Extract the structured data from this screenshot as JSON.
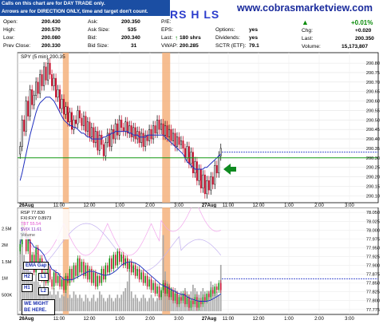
{
  "header": {
    "note_line1": "Calls on this chart are for DAY TRADE only.",
    "note_line2": "Arrows are for DIRECTION ONLY, time and target don't count.",
    "ticker_label": "RS H LS",
    "website": "www.cobrasmarketview.com"
  },
  "quote": {
    "open_label": "Open:",
    "open": "200.430",
    "high_label": "High:",
    "high": "200.570",
    "low_label": "Low:",
    "low": "200.080",
    "prev_label": "Prev Close:",
    "prev": "200.330",
    "ask_label": "Ask:",
    "ask": "200.350",
    "asksize_label": "Ask Size:",
    "asksize": "535",
    "bid_label": "Bid:",
    "bid": "200.340",
    "bidsize_label": "Bid Size:",
    "bidsize": "31",
    "pe_label": "P/E:",
    "pe": "",
    "eps_label": "EPS:",
    "eps": "",
    "last_label": "Last:",
    "last_size": "180 shrs",
    "vwap_label": "VWAP:",
    "vwap": "200.285",
    "options_label": "Options:",
    "options": "yes",
    "dividends_label": "Dividends:",
    "dividends": "yes",
    "sctr_label": "SCTR (ETF):",
    "sctr": "79.1",
    "chg_pct": "+0.01%",
    "chg_label": "Chg:",
    "chg": "+0.020",
    "last2_label": "Last:",
    "last": "200.350",
    "volume_label": "Volume:",
    "volume": "15,173,807"
  },
  "main_panel": {
    "legend": "SPY (5 min) 200.35"
  },
  "volume_panel": {
    "legend_rsp": "RSP 77.830",
    "legend_fxi": "FXI:FXY 0.8973",
    "legend_tbt": "TBT 55.54",
    "legend_vix": "$VIX 11.61",
    "legend_vol": "Volume"
  },
  "labels": {
    "ema_gap": "EMA Gap",
    "h2": "H2",
    "l1": "L1",
    "h1": "H1",
    "l2": "L2",
    "might": "WE MIGHT BE HERE."
  },
  "colors": {
    "up": "#0a8c0a",
    "down": "#c8102e",
    "neutral": "#000000",
    "ma": "#1f2fbf",
    "support": "#139a13",
    "resistance": "#2b3ccc",
    "highlight": "#f4b27c",
    "arrow": "#0f8a20",
    "header_bg": "#1b4ea3"
  },
  "chart_data": [
    {
      "type": "candlestick",
      "title": "SPY (5 min) 200.35",
      "x_tick_labels": [
        "26Aug",
        "11:00",
        "12:00",
        "1:00",
        "2:00",
        "3:00",
        "27Aug",
        "11:00",
        "12:00",
        "1:00",
        "2:00",
        "3:00"
      ],
      "y_tick_labels": [
        "200.80",
        "200.75",
        "200.70",
        "200.65",
        "200.60",
        "200.55",
        "200.50",
        "200.45",
        "200.40",
        "200.35",
        "200.30",
        "200.25",
        "200.20",
        "200.15",
        "200.10"
      ],
      "ylim": [
        200.08,
        200.83
      ],
      "close": [
        200.36,
        200.5,
        200.44,
        200.6,
        200.52,
        200.66,
        200.58,
        200.63,
        200.7,
        200.64,
        200.74,
        200.68,
        200.78,
        200.71,
        200.8,
        200.74,
        200.68,
        200.72,
        200.62,
        200.66,
        200.56,
        200.61,
        200.53,
        200.57,
        200.49,
        200.54,
        200.45,
        200.5,
        200.48,
        200.55,
        200.51,
        200.47,
        200.52,
        200.44,
        200.49,
        200.41,
        200.46,
        200.38,
        200.44,
        200.34,
        200.42,
        200.37,
        200.31,
        200.38,
        200.43,
        200.36,
        200.45,
        200.4,
        200.48,
        200.42,
        200.5,
        200.46,
        200.44,
        200.49,
        200.43,
        200.47,
        200.41,
        200.46,
        200.4,
        200.44,
        200.38,
        200.43,
        200.36,
        200.42,
        200.39,
        200.45,
        200.4,
        200.47,
        200.43,
        200.5,
        200.45,
        200.48,
        200.42,
        200.47,
        200.41,
        200.45,
        200.39,
        200.43,
        200.36,
        200.41,
        200.37,
        200.39,
        200.35,
        200.3,
        200.36,
        200.27,
        200.33,
        200.22,
        200.28,
        200.18,
        200.24,
        200.14,
        200.21,
        200.11,
        200.18,
        200.13,
        200.2,
        200.16,
        200.26,
        200.22,
        200.31,
        200.35
      ],
      "moving_average": [
        200.18,
        200.22,
        200.27,
        200.32,
        200.37,
        200.42,
        200.46,
        200.5,
        200.54,
        200.57,
        200.59,
        200.6,
        200.61,
        200.62,
        200.62,
        200.62,
        200.61,
        200.6,
        200.58,
        200.56,
        200.54,
        200.52,
        200.5,
        200.49,
        200.48,
        200.47,
        200.47,
        200.46,
        200.46,
        200.45,
        200.44,
        200.43,
        200.43,
        200.42,
        200.41,
        200.41,
        200.4,
        200.4,
        200.4,
        200.4,
        200.4,
        200.4,
        200.41,
        200.41,
        200.42,
        200.42,
        200.43,
        200.43,
        200.44,
        200.44,
        200.44,
        200.44,
        200.44,
        200.44,
        200.44,
        200.43,
        200.43,
        200.42,
        200.42,
        200.42,
        200.41,
        200.41,
        200.41,
        200.41,
        200.42,
        200.42,
        200.42,
        200.42,
        200.42,
        200.42,
        200.42,
        200.42,
        200.42,
        200.41,
        200.4,
        200.39,
        200.38,
        200.37,
        200.36,
        200.35,
        200.34,
        200.33,
        200.32,
        200.3,
        200.28,
        200.27,
        200.26,
        200.25,
        200.24,
        200.24,
        200.24,
        200.24,
        200.24,
        200.25,
        200.25,
        200.26,
        200.27,
        200.28,
        200.29,
        200.3,
        200.31,
        200.32
      ],
      "support_line": 200.3,
      "resistance_line": 200.33,
      "highlight_bars": [
        [
          22,
          25
        ],
        [
          72,
          76
        ]
      ]
    },
    {
      "type": "volume",
      "y_tick_labels": [
        "78.050",
        "78.025",
        "78.000",
        "77.975",
        "77.950",
        "77.925",
        "77.900",
        "77.875",
        "77.850",
        "77.825",
        "77.800",
        "77.775"
      ],
      "volume_tick_labels": [
        "2.5M",
        "2M",
        "1.5M",
        "1M",
        "500K"
      ],
      "volume": [
        2.4,
        2.1,
        1.7,
        1.5,
        1.3,
        1.2,
        1.0,
        0.9,
        1.1,
        0.9,
        0.8,
        0.7,
        1.0,
        0.6,
        0.5,
        0.6,
        0.5,
        0.7,
        0.5,
        0.6,
        0.4,
        0.5,
        0.45,
        0.6,
        0.4,
        0.5,
        0.4,
        0.6,
        0.5,
        0.4,
        0.5,
        0.4,
        0.3,
        0.5,
        0.4,
        0.3,
        0.4,
        0.5,
        0.3,
        0.4,
        0.6,
        0.5,
        0.4,
        0.3,
        0.4,
        0.5,
        0.4,
        0.3,
        0.4,
        0.5,
        0.4,
        0.5,
        0.6,
        0.7,
        0.9,
        1.4,
        0.6,
        0.4,
        0.5,
        0.4,
        0.3,
        0.4,
        0.5,
        0.4,
        0.3,
        0.4,
        0.5,
        0.4,
        0.3,
        0.4,
        0.5,
        0.6,
        2.3,
        1.2,
        0.9,
        0.8,
        0.7,
        0.6,
        0.7,
        0.6,
        0.5,
        0.6,
        0.5,
        0.7,
        0.6,
        0.5,
        0.6,
        0.8,
        0.7,
        0.6,
        0.5,
        0.6,
        0.7,
        0.6,
        0.5,
        0.6,
        0.9,
        0.8,
        0.7,
        0.6,
        0.5,
        1.4
      ],
      "rsp": [
        77.96,
        78.02,
        78.0,
        77.94,
        77.98,
        77.9,
        77.93,
        77.88,
        77.95,
        77.9,
        77.92,
        77.86,
        77.88,
        77.85,
        77.89,
        77.86,
        77.84,
        77.88,
        77.85,
        77.87,
        77.84,
        77.86,
        77.83,
        77.87,
        77.85,
        77.89,
        77.86,
        77.9,
        77.87,
        77.92,
        77.88,
        77.91,
        77.87,
        77.9,
        77.86,
        77.89,
        77.85,
        77.88,
        77.84,
        77.87,
        77.85,
        77.89,
        77.86,
        77.9,
        77.88,
        77.92,
        77.89,
        77.93,
        77.9,
        77.94,
        77.91,
        77.93,
        77.9,
        77.92,
        77.89,
        77.91,
        77.88,
        77.9,
        77.87,
        77.89,
        77.86,
        77.88,
        77.85,
        77.87,
        77.84,
        77.86,
        77.83,
        77.85,
        77.82,
        77.84,
        77.81,
        77.83,
        77.85,
        77.82,
        77.84,
        77.81,
        77.83,
        77.8,
        77.82,
        77.79,
        77.81,
        77.8,
        77.82,
        77.79,
        77.81,
        77.78,
        77.8,
        77.79,
        77.81,
        77.78,
        77.8,
        77.79,
        77.81,
        77.8,
        77.82,
        77.81,
        77.83,
        77.82,
        77.84,
        77.83,
        77.85,
        77.83
      ]
    }
  ]
}
